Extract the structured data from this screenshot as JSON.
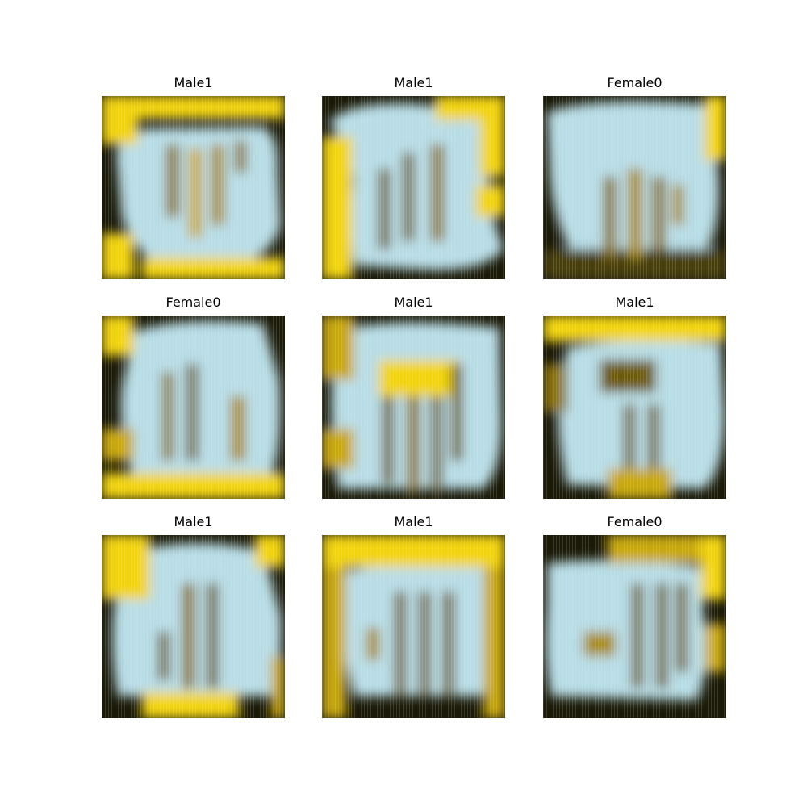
{
  "colors": {
    "background": "#ffffff",
    "light_blue": "#b8dde6",
    "yellow": "#f2d40a",
    "dark": "#1b1a08"
  },
  "panels": [
    {
      "title": "Male1"
    },
    {
      "title": "Male1"
    },
    {
      "title": "Female0"
    },
    {
      "title": "Female0"
    },
    {
      "title": "Male1"
    },
    {
      "title": "Male1"
    },
    {
      "title": "Male1"
    },
    {
      "title": "Male1"
    },
    {
      "title": "Female0"
    }
  ]
}
